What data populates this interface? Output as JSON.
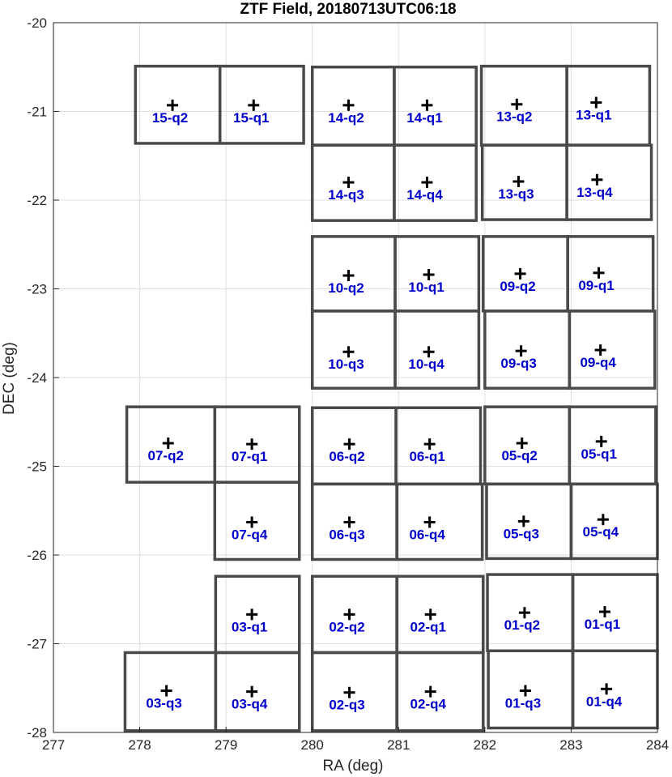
{
  "chart_data": {
    "type": "scatter",
    "title": "ZTF Field, 20180713UTC06:18",
    "xlabel": "RA (deg)",
    "ylabel": "DEC (deg)",
    "xlim": [
      277,
      284
    ],
    "ylim": [
      -28,
      -20
    ],
    "xticks": [
      "277",
      "278",
      "279",
      "280",
      "281",
      "282",
      "283",
      "284"
    ],
    "yticks": [
      "-20",
      "-21",
      "-22",
      "-23",
      "-24",
      "-25",
      "-26",
      "-27",
      "-28"
    ],
    "grid": true,
    "label_color": "#0000cc",
    "box_color": "#4a4a4a",
    "quadrants": [
      {
        "label": "15-q2",
        "ra": [
          277.95,
          278.93
        ],
        "dec": [
          -21.36,
          -20.49
        ],
        "center": [
          278.38,
          -20.93
        ]
      },
      {
        "label": "15-q1",
        "ra": [
          278.93,
          279.9
        ],
        "dec": [
          -21.36,
          -20.49
        ],
        "center": [
          279.32,
          -20.93
        ]
      },
      {
        "label": "14-q2",
        "ra": [
          280.0,
          280.95
        ],
        "dec": [
          -21.38,
          -20.5
        ],
        "center": [
          280.42,
          -20.93
        ]
      },
      {
        "label": "14-q1",
        "ra": [
          280.95,
          281.9
        ],
        "dec": [
          -21.38,
          -20.5
        ],
        "center": [
          281.33,
          -20.93
        ]
      },
      {
        "label": "13-q2",
        "ra": [
          281.96,
          282.95
        ],
        "dec": [
          -21.38,
          -20.49
        ],
        "center": [
          282.37,
          -20.92
        ]
      },
      {
        "label": "13-q1",
        "ra": [
          282.95,
          283.91
        ],
        "dec": [
          -21.38,
          -20.49
        ],
        "center": [
          283.29,
          -20.9
        ]
      },
      {
        "label": "14-q3",
        "ra": [
          280.0,
          280.95
        ],
        "dec": [
          -22.23,
          -21.38
        ],
        "center": [
          280.42,
          -21.8
        ]
      },
      {
        "label": "14-q4",
        "ra": [
          280.95,
          281.9
        ],
        "dec": [
          -22.23,
          -21.38
        ],
        "center": [
          281.33,
          -21.8
        ]
      },
      {
        "label": "13-q3",
        "ra": [
          281.97,
          282.95
        ],
        "dec": [
          -22.22,
          -21.38
        ],
        "center": [
          282.39,
          -21.79
        ]
      },
      {
        "label": "13-q4",
        "ra": [
          282.95,
          283.93
        ],
        "dec": [
          -22.22,
          -21.38
        ],
        "center": [
          283.3,
          -21.77
        ]
      },
      {
        "label": "10-q2",
        "ra": [
          280.0,
          280.96
        ],
        "dec": [
          -23.25,
          -22.41
        ],
        "center": [
          280.42,
          -22.85
        ]
      },
      {
        "label": "10-q1",
        "ra": [
          280.96,
          281.93
        ],
        "dec": [
          -23.25,
          -22.41
        ],
        "center": [
          281.35,
          -22.84
        ]
      },
      {
        "label": "09-q2",
        "ra": [
          281.98,
          282.96
        ],
        "dec": [
          -23.25,
          -22.41
        ],
        "center": [
          282.41,
          -22.83
        ]
      },
      {
        "label": "09-q1",
        "ra": [
          282.96,
          283.95
        ],
        "dec": [
          -23.25,
          -22.41
        ],
        "center": [
          283.32,
          -22.82
        ]
      },
      {
        "label": "10-q3",
        "ra": [
          280.0,
          280.96
        ],
        "dec": [
          -24.12,
          -23.25
        ],
        "center": [
          280.42,
          -23.71
        ]
      },
      {
        "label": "10-q4",
        "ra": [
          280.96,
          281.93
        ],
        "dec": [
          -24.12,
          -23.25
        ],
        "center": [
          281.35,
          -23.71
        ]
      },
      {
        "label": "09-q3",
        "ra": [
          282.0,
          282.98
        ],
        "dec": [
          -24.12,
          -23.25
        ],
        "center": [
          282.42,
          -23.7
        ]
      },
      {
        "label": "09-q4",
        "ra": [
          282.98,
          283.97
        ],
        "dec": [
          -24.12,
          -23.25
        ],
        "center": [
          283.34,
          -23.69
        ]
      },
      {
        "label": "07-q2",
        "ra": [
          277.85,
          278.87
        ],
        "dec": [
          -25.18,
          -24.33
        ],
        "center": [
          278.33,
          -24.74
        ]
      },
      {
        "label": "07-q1",
        "ra": [
          278.87,
          279.85
        ],
        "dec": [
          -25.18,
          -24.33
        ],
        "center": [
          279.3,
          -24.75
        ]
      },
      {
        "label": "06-q2",
        "ra": [
          280.0,
          280.97
        ],
        "dec": [
          -25.2,
          -24.34
        ],
        "center": [
          280.43,
          -24.75
        ]
      },
      {
        "label": "06-q1",
        "ra": [
          280.97,
          281.95
        ],
        "dec": [
          -25.2,
          -24.34
        ],
        "center": [
          281.36,
          -24.75
        ]
      },
      {
        "label": "05-q2",
        "ra": [
          282.0,
          282.98
        ],
        "dec": [
          -25.2,
          -24.33
        ],
        "center": [
          282.43,
          -24.74
        ]
      },
      {
        "label": "05-q1",
        "ra": [
          282.98,
          283.98
        ],
        "dec": [
          -25.2,
          -24.33
        ],
        "center": [
          283.35,
          -24.72
        ]
      },
      {
        "label": "07-q4",
        "ra": [
          278.87,
          279.85
        ],
        "dec": [
          -26.05,
          -25.18
        ],
        "center": [
          279.3,
          -25.63
        ]
      },
      {
        "label": "06-q3",
        "ra": [
          280.0,
          280.98
        ],
        "dec": [
          -26.05,
          -25.2
        ],
        "center": [
          280.43,
          -25.63
        ]
      },
      {
        "label": "06-q4",
        "ra": [
          280.98,
          281.97
        ],
        "dec": [
          -26.05,
          -25.2
        ],
        "center": [
          281.36,
          -25.63
        ]
      },
      {
        "label": "05-q3",
        "ra": [
          282.02,
          283.0
        ],
        "dec": [
          -26.04,
          -25.2
        ],
        "center": [
          282.45,
          -25.62
        ]
      },
      {
        "label": "05-q4",
        "ra": [
          283.0,
          284.0
        ],
        "dec": [
          -26.04,
          -25.2
        ],
        "center": [
          283.37,
          -25.6
        ]
      },
      {
        "label": "03-q1",
        "ra": [
          278.88,
          279.85
        ],
        "dec": [
          -27.1,
          -26.24
        ],
        "center": [
          279.3,
          -26.67
        ]
      },
      {
        "label": "02-q2",
        "ra": [
          280.0,
          280.98
        ],
        "dec": [
          -27.1,
          -26.24
        ],
        "center": [
          280.43,
          -26.67
        ]
      },
      {
        "label": "02-q1",
        "ra": [
          280.98,
          281.98
        ],
        "dec": [
          -27.1,
          -26.24
        ],
        "center": [
          281.37,
          -26.67
        ]
      },
      {
        "label": "01-q2",
        "ra": [
          282.03,
          283.02
        ],
        "dec": [
          -27.08,
          -26.22
        ],
        "center": [
          282.46,
          -26.65
        ]
      },
      {
        "label": "01-q1",
        "ra": [
          283.02,
          284.0
        ],
        "dec": [
          -27.08,
          -26.22
        ],
        "center": [
          283.39,
          -26.64
        ]
      },
      {
        "label": "03-q3",
        "ra": [
          277.83,
          278.88
        ],
        "dec": [
          -27.98,
          -27.1
        ],
        "center": [
          278.31,
          -27.53
        ]
      },
      {
        "label": "03-q4",
        "ra": [
          278.88,
          279.85
        ],
        "dec": [
          -27.98,
          -27.1
        ],
        "center": [
          279.3,
          -27.54
        ]
      },
      {
        "label": "02-q3",
        "ra": [
          280.0,
          280.98
        ],
        "dec": [
          -27.98,
          -27.1
        ],
        "center": [
          280.43,
          -27.55
        ]
      },
      {
        "label": "02-q4",
        "ra": [
          280.98,
          281.98
        ],
        "dec": [
          -27.98,
          -27.1
        ],
        "center": [
          281.37,
          -27.54
        ]
      },
      {
        "label": "01-q3",
        "ra": [
          282.04,
          283.02
        ],
        "dec": [
          -27.95,
          -27.08
        ],
        "center": [
          282.47,
          -27.53
        ]
      },
      {
        "label": "01-q4",
        "ra": [
          283.02,
          284.0
        ],
        "dec": [
          -27.95,
          -27.08
        ],
        "center": [
          283.41,
          -27.51
        ]
      }
    ]
  }
}
